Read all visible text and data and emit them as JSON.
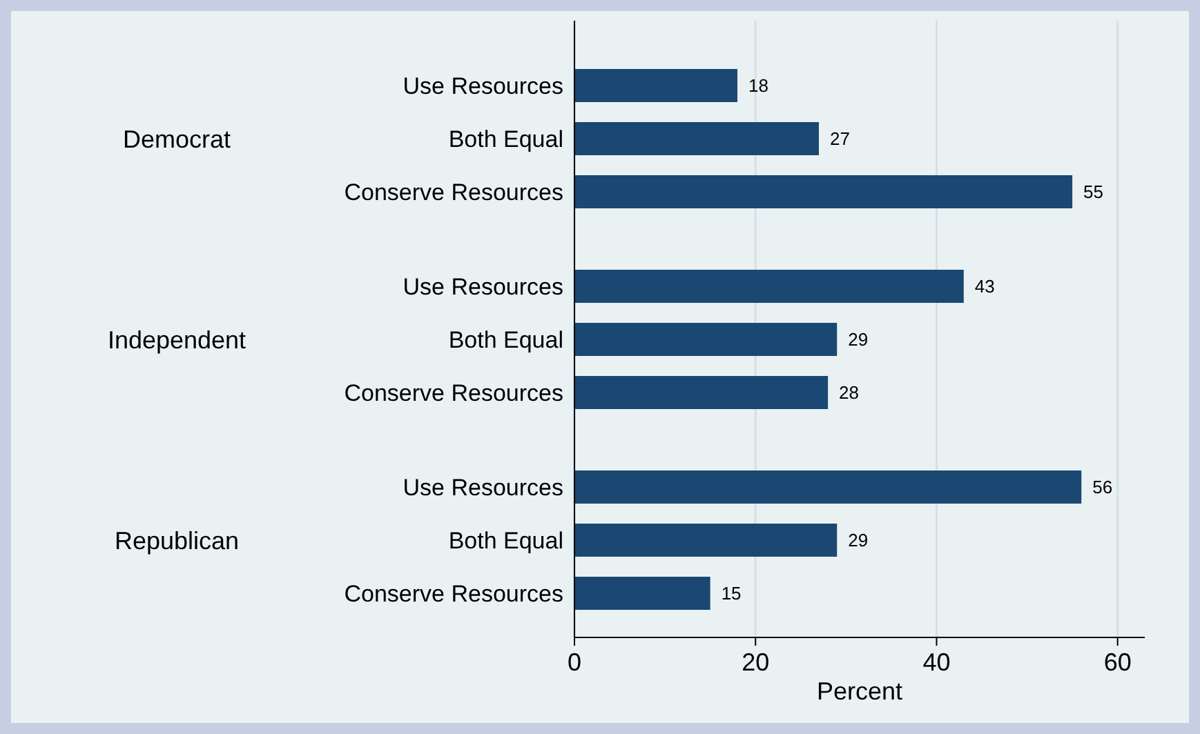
{
  "chart_data": {
    "type": "bar",
    "orientation": "horizontal",
    "xlabel": "Percent",
    "categories": [
      "Use Resources",
      "Both Equal",
      "Conserve Resources",
      "Use Resources",
      "Both Equal",
      "Conserve Resources",
      "Use Resources",
      "Both Equal",
      "Conserve Resources"
    ],
    "values": [
      18,
      27,
      55,
      43,
      29,
      28,
      56,
      29,
      15
    ],
    "color": "#1b4872",
    "xlim": [
      0,
      63
    ],
    "xticks": [
      0,
      20,
      40,
      60
    ],
    "grid": "x",
    "data_labels": true,
    "annotations": [
      "Democrat",
      "Independent",
      "Republican"
    ]
  }
}
